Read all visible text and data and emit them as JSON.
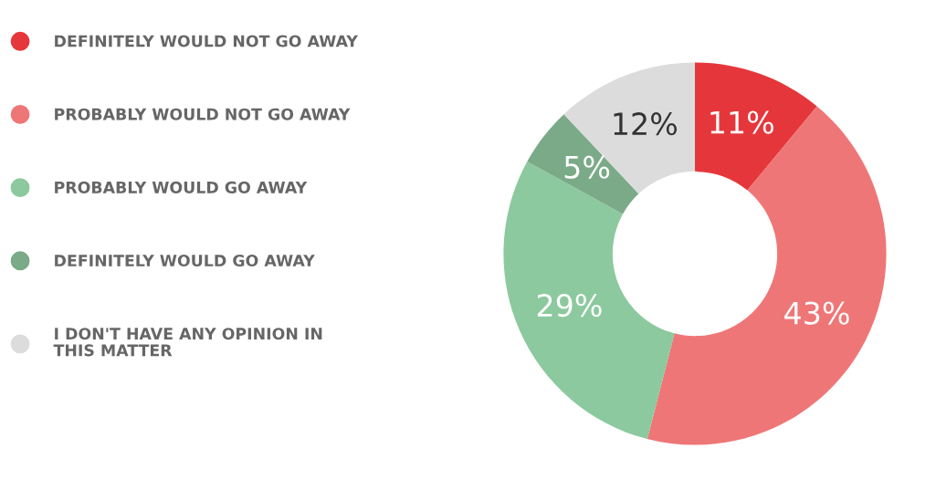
{
  "chart_data": {
    "type": "donut",
    "categories": [
      "DEFINITELY WOULD NOT GO AWAY",
      "PROBABLY WOULD NOT GO AWAY",
      "PROBABLY WOULD GO AWAY",
      "DEFINITELY WOULD GO AWAY",
      "I DON'T HAVE ANY OPINION IN\nTHIS MATTER"
    ],
    "values": [
      11,
      43,
      29,
      5,
      12
    ],
    "colors": [
      "#e5373b",
      "#ef7677",
      "#8cc99e",
      "#7aaa87",
      "#dcdcdc"
    ],
    "value_labels": [
      "11%",
      "43%",
      "29%",
      "5%",
      "12%"
    ],
    "legend": "left"
  }
}
